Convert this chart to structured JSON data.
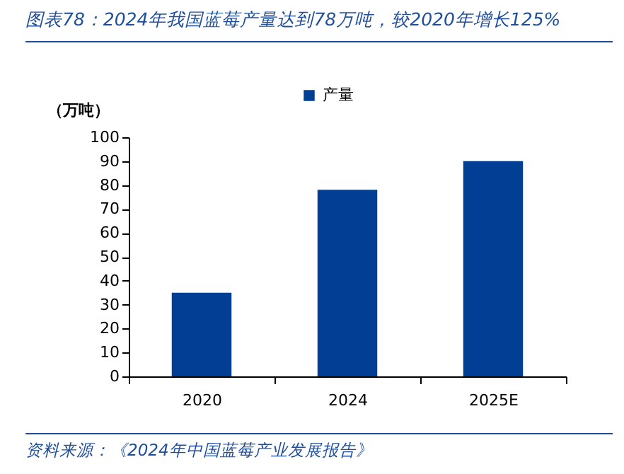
{
  "chart_data": {
    "type": "bar",
    "title": "图表78：2024年我国蓝莓产量达到78万吨，较2020年增长125%",
    "ylabel": "（万吨）",
    "categories": [
      "2020",
      "2024",
      "2025E"
    ],
    "series": [
      {
        "name": "产量",
        "color": "#023f94",
        "values": [
          35,
          78,
          90
        ]
      }
    ],
    "ylim": [
      0,
      100
    ],
    "yticks": [
      0,
      10,
      20,
      30,
      40,
      50,
      60,
      70,
      80,
      90,
      100
    ],
    "grid": false,
    "legend": "top",
    "annotations": [
      "资料来源：《2024年中国蓝莓产业发展报告》"
    ]
  }
}
